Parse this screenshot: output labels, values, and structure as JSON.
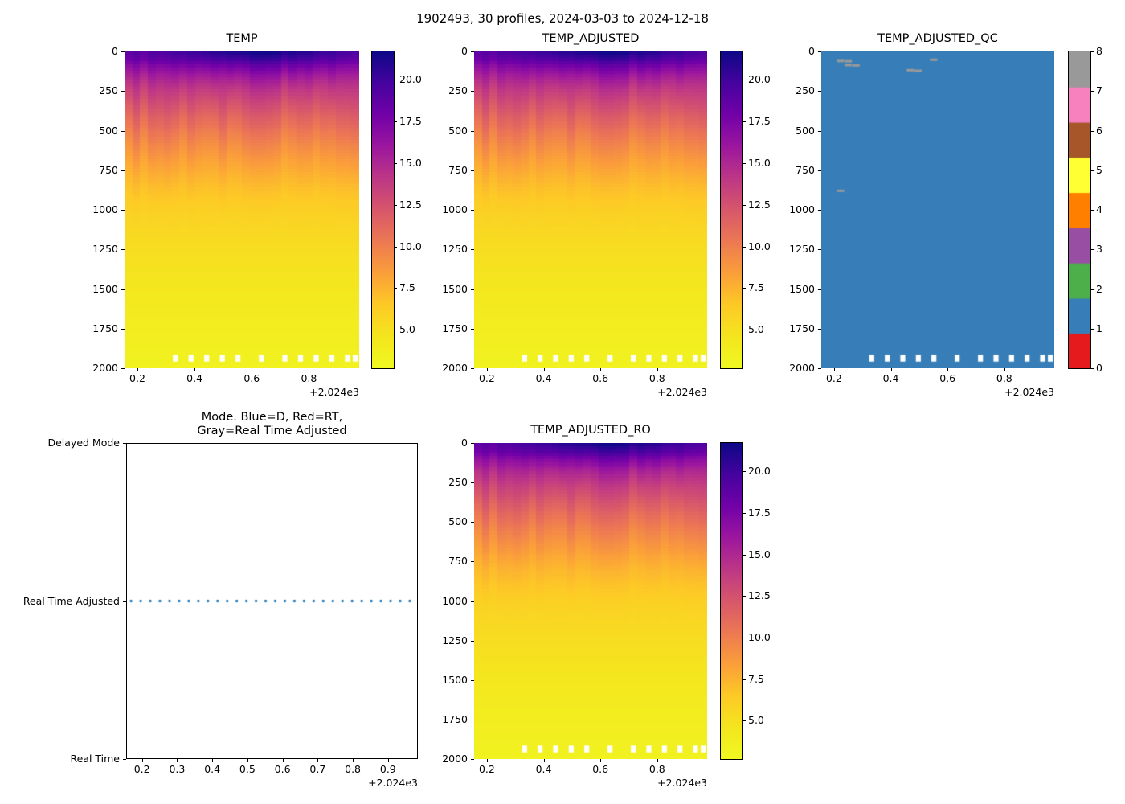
{
  "figure": {
    "title": "1902493, 30 profiles, 2024-03-03 to 2024-12-18"
  },
  "style": {
    "plasma_stops": [
      "#0d0887",
      "#46039f",
      "#7201a8",
      "#9c179e",
      "#bd3786",
      "#d8576b",
      "#ed7953",
      "#fb9f3a",
      "#fdca26",
      "#f4e61e",
      "#f0f921"
    ],
    "qc_colors": [
      "#e41a1c",
      "#377eb8",
      "#4daf4a",
      "#984ea3",
      "#ff7f00",
      "#ffff33",
      "#a65628",
      "#f781bf",
      "#999999"
    ],
    "dot_color": "#1f77b4",
    "missing_color": "#ffffff",
    "text_color": "#000000"
  },
  "chart_data": [
    {
      "type": "heatmap",
      "title": "TEMP",
      "n_profiles": 30,
      "x": {
        "lim": [
          2024.155,
          2024.976
        ],
        "ticks": [
          2024.2,
          2024.4,
          2024.6,
          2024.8
        ],
        "tick_labels": [
          "0.2",
          "0.4",
          "0.6",
          "0.8"
        ],
        "offset_label": "+2.024e3"
      },
      "y": {
        "lim": [
          0,
          2000
        ],
        "inverted": true,
        "ticks": [
          0,
          250,
          500,
          750,
          1000,
          1250,
          1500,
          1750,
          2000
        ],
        "tick_labels": [
          "0",
          "250",
          "500",
          "750",
          "1000",
          "1250",
          "1500",
          "1750",
          "2000"
        ]
      },
      "colorbar": {
        "vmin": 2.7,
        "vmax": 21.7,
        "ticks": [
          5.0,
          7.5,
          10.0,
          12.5,
          15.0,
          17.5,
          20.0
        ],
        "tick_labels": [
          "5.0",
          "7.5",
          "10.0",
          "12.5",
          "15.0",
          "17.5",
          "20.0"
        ]
      },
      "profiles": {
        "x_start": 2024.169,
        "x_end": 2024.962
      },
      "field": {
        "depths": [
          0,
          50,
          100,
          150,
          200,
          250,
          300,
          400,
          500,
          600,
          700,
          800,
          900,
          1000,
          1100,
          1250,
          1500,
          1750,
          2000
        ],
        "temps": [
          20.5,
          19.2,
          17.2,
          15.8,
          14.7,
          13.8,
          13.0,
          11.6,
          10.4,
          9.3,
          8.3,
          7.4,
          6.7,
          6.1,
          5.7,
          5.2,
          4.5,
          3.9,
          3.4
        ],
        "surface_seasonal": {
          "mean": 20.2,
          "amplitude": 1.4,
          "peak_time": 0.63
        },
        "noise_amplitude": 0.6
      },
      "missing_bottom_profiles": [
        6,
        8,
        10,
        12,
        14,
        17,
        20,
        22,
        24,
        26,
        28,
        29
      ],
      "missing_band_depths": [
        1915,
        1958
      ]
    },
    {
      "type": "heatmap",
      "title": "TEMP_ADJUSTED",
      "n_profiles": 30,
      "field_ref": 0,
      "x": {
        "lim": [
          2024.155,
          2024.976
        ],
        "ticks": [
          2024.2,
          2024.4,
          2024.6,
          2024.8
        ],
        "tick_labels": [
          "0.2",
          "0.4",
          "0.6",
          "0.8"
        ],
        "offset_label": "+2.024e3"
      },
      "y": {
        "lim": [
          0,
          2000
        ],
        "inverted": true,
        "ticks": [
          0,
          250,
          500,
          750,
          1000,
          1250,
          1500,
          1750,
          2000
        ],
        "tick_labels": [
          "0",
          "250",
          "500",
          "750",
          "1000",
          "1250",
          "1500",
          "1750",
          "2000"
        ]
      },
      "colorbar": {
        "vmin": 2.7,
        "vmax": 21.7,
        "ticks": [
          5.0,
          7.5,
          10.0,
          12.5,
          15.0,
          17.5,
          20.0
        ],
        "tick_labels": [
          "5.0",
          "7.5",
          "10.0",
          "12.5",
          "15.0",
          "17.5",
          "20.0"
        ]
      },
      "missing_bottom_profiles": [
        6,
        8,
        10,
        12,
        14,
        17,
        20,
        22,
        24,
        26,
        28,
        29
      ],
      "missing_band_depths": [
        1915,
        1958
      ]
    },
    {
      "type": "qc",
      "title": "TEMP_ADJUSTED_QC",
      "n_profiles": 30,
      "x": {
        "lim": [
          2024.155,
          2024.976
        ],
        "ticks": [
          2024.2,
          2024.4,
          2024.6,
          2024.8
        ],
        "tick_labels": [
          "0.2",
          "0.4",
          "0.6",
          "0.8"
        ],
        "offset_label": "+2.024e3"
      },
      "y": {
        "lim": [
          0,
          2000
        ],
        "inverted": true,
        "ticks": [
          0,
          250,
          500,
          750,
          1000,
          1250,
          1500,
          1750,
          2000
        ],
        "tick_labels": [
          "0",
          "250",
          "500",
          "750",
          "1000",
          "1250",
          "1500",
          "1750",
          "2000"
        ]
      },
      "colorbar": {
        "vmin": 0,
        "vmax": 8,
        "ticks": [
          0,
          1,
          2,
          3,
          4,
          5,
          6,
          7,
          8
        ],
        "tick_labels": [
          "0",
          "1",
          "2",
          "3",
          "4",
          "5",
          "6",
          "7",
          "8"
        ]
      },
      "body_value": 1,
      "flag_marks": [
        {
          "profile": 2,
          "depth": 60,
          "value": 8
        },
        {
          "profile": 3,
          "depth": 62,
          "value": 8
        },
        {
          "profile": 3,
          "depth": 86,
          "value": 8
        },
        {
          "profile": 4,
          "depth": 88,
          "value": 8
        },
        {
          "profile": 11,
          "depth": 118,
          "value": 8
        },
        {
          "profile": 12,
          "depth": 122,
          "value": 8
        },
        {
          "profile": 14,
          "depth": 52,
          "value": 8
        },
        {
          "profile": 2,
          "depth": 880,
          "value": 8
        }
      ],
      "missing_bottom_profiles": [
        6,
        8,
        10,
        12,
        14,
        17,
        20,
        22,
        24,
        26,
        28,
        29
      ],
      "missing_band_depths": [
        1915,
        1958
      ]
    },
    {
      "type": "mode",
      "title_lines": [
        "Mode. Blue=D, Red=RT,",
        "Gray=Real Time Adjusted"
      ],
      "x": {
        "lim": [
          2024.155,
          2024.985
        ],
        "ticks": [
          2024.2,
          2024.3,
          2024.4,
          2024.5,
          2024.6,
          2024.7,
          2024.8,
          2024.9
        ],
        "tick_labels": [
          "0.2",
          "0.3",
          "0.4",
          "0.5",
          "0.6",
          "0.7",
          "0.8",
          "0.9"
        ],
        "offset_label": "+2.024e3"
      },
      "y": {
        "categories": [
          "Delayed Mode",
          "Real Time Adjusted",
          "Real Time"
        ]
      },
      "points": {
        "value": "Real Time Adjusted",
        "count": 30,
        "x_start": 2024.169,
        "x_end": 2024.962
      }
    },
    {
      "type": "heatmap",
      "title": "TEMP_ADJUSTED_RO",
      "n_profiles": 30,
      "field_ref": 0,
      "x": {
        "lim": [
          2024.155,
          2024.976
        ],
        "ticks": [
          2024.2,
          2024.4,
          2024.6,
          2024.8
        ],
        "tick_labels": [
          "0.2",
          "0.4",
          "0.6",
          "0.8"
        ],
        "offset_label": "+2.024e3"
      },
      "y": {
        "lim": [
          0,
          2000
        ],
        "inverted": true,
        "ticks": [
          0,
          250,
          500,
          750,
          1000,
          1250,
          1500,
          1750,
          2000
        ],
        "tick_labels": [
          "0",
          "250",
          "500",
          "750",
          "1000",
          "1250",
          "1500",
          "1750",
          "2000"
        ]
      },
      "colorbar": {
        "vmin": 2.7,
        "vmax": 21.7,
        "ticks": [
          5.0,
          7.5,
          10.0,
          12.5,
          15.0,
          17.5,
          20.0
        ],
        "tick_labels": [
          "5.0",
          "7.5",
          "10.0",
          "12.5",
          "15.0",
          "17.5",
          "20.0"
        ]
      },
      "missing_bottom_profiles": [
        6,
        8,
        10,
        12,
        14,
        17,
        20,
        22,
        24,
        26,
        28,
        29
      ],
      "missing_band_depths": [
        1915,
        1958
      ]
    }
  ]
}
